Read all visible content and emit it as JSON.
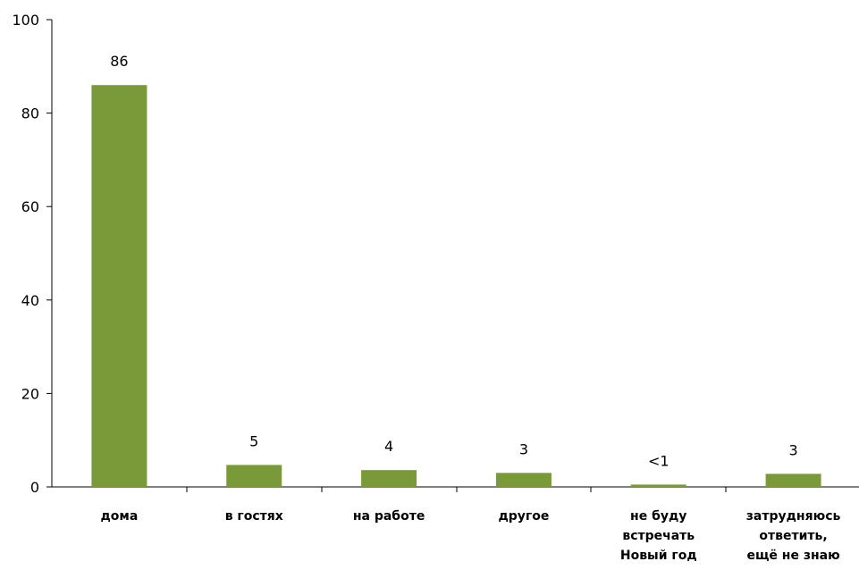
{
  "chart_data": {
    "type": "bar",
    "title": "",
    "xlabel": "",
    "ylabel": "",
    "ylim": [
      0,
      100
    ],
    "yticks": [
      0,
      20,
      40,
      60,
      80,
      100
    ],
    "grid": false,
    "bar_color": "#7a9a3a",
    "categories": [
      [
        "дома"
      ],
      [
        "в гостях"
      ],
      [
        "на работе"
      ],
      [
        "другое"
      ],
      [
        "не буду",
        "встречать",
        "Новый год"
      ],
      [
        "затрудняюсь",
        "ответить,",
        "ещё не знаю"
      ]
    ],
    "values": [
      86,
      4.7,
      3.6,
      3,
      0.5,
      2.8
    ],
    "data_labels": [
      "86",
      "5",
      "4",
      "3",
      "<1",
      "3"
    ]
  }
}
